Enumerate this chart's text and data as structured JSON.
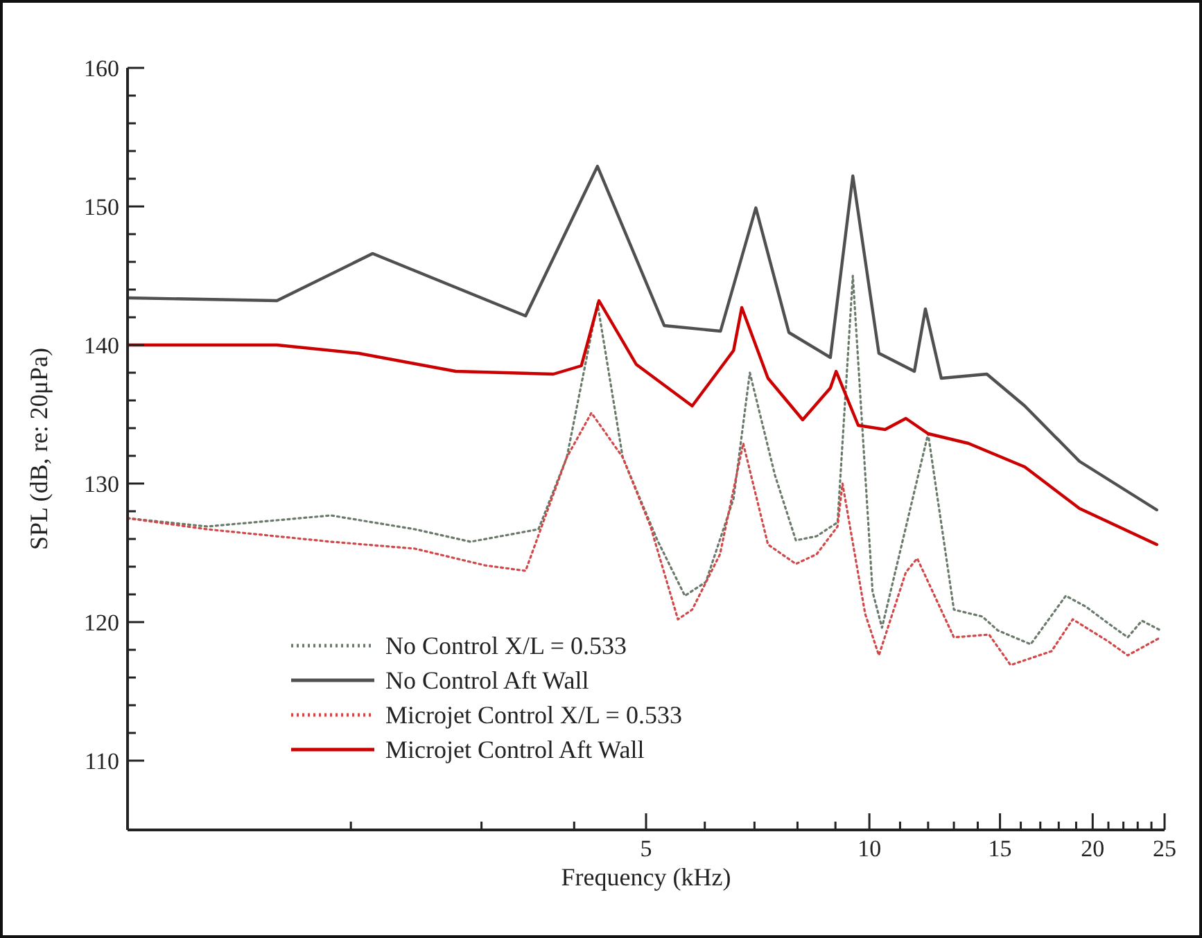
{
  "chart_data": {
    "type": "line",
    "xlabel": "Frequency (kHz)",
    "ylabel": "SPL (dB, re: 20μPa)",
    "log": "x",
    "xlim": [
      1,
      25
    ],
    "ylim": [
      105,
      160
    ],
    "xticks": [
      {
        "value": 2,
        "label": null
      },
      {
        "value": 3,
        "label": null
      },
      {
        "value": 4,
        "label": null
      },
      5,
      {
        "value": 6,
        "label": null
      },
      {
        "value": 7,
        "label": null
      },
      {
        "value": 8,
        "label": null
      },
      {
        "value": 9,
        "label": null
      },
      10,
      {
        "value": 11,
        "label": null
      },
      {
        "value": 12,
        "label": null
      },
      {
        "value": 13,
        "label": null
      },
      {
        "value": 14,
        "label": null
      },
      15,
      {
        "value": 16,
        "label": null
      },
      {
        "value": 17,
        "label": null
      },
      {
        "value": 18,
        "label": null
      },
      {
        "value": 19,
        "label": null
      },
      20,
      {
        "value": 21,
        "label": null
      },
      {
        "value": 22,
        "label": null
      },
      {
        "value": 23,
        "label": null
      },
      {
        "value": 24,
        "label": null
      },
      25
    ],
    "yticks": [
      110,
      {
        "value": 112,
        "label": null
      },
      {
        "value": 114,
        "label": null
      },
      {
        "value": 116,
        "label": null
      },
      {
        "value": 118,
        "label": null
      },
      120,
      {
        "value": 122,
        "label": null
      },
      {
        "value": 124,
        "label": null
      },
      {
        "value": 126,
        "label": null
      },
      {
        "value": 128,
        "label": null
      },
      130,
      {
        "value": 132,
        "label": null
      },
      {
        "value": 134,
        "label": null
      },
      {
        "value": 136,
        "label": null
      },
      {
        "value": 138,
        "label": null
      },
      140,
      {
        "value": 142,
        "label": null
      },
      {
        "value": 144,
        "label": null
      },
      {
        "value": 146,
        "label": null
      },
      {
        "value": 148,
        "label": null
      },
      150,
      {
        "value": 152,
        "label": null
      },
      {
        "value": 154,
        "label": null
      },
      {
        "value": 156,
        "label": null
      },
      {
        "value": 158,
        "label": null
      },
      160
    ],
    "grid": false,
    "legend": "bottom left",
    "series": [
      {
        "name": "No Control X/L = 0.533",
        "color": "#6a7a6a",
        "line_style": "dotted",
        "x": [
          1,
          1.28,
          1.88,
          2.44,
          2.9,
          3.58,
          3.91,
          4.3,
          4.65,
          5.18,
          5.64,
          6.02,
          6.56,
          6.9,
          7.46,
          7.96,
          8.49,
          9.06,
          9.5,
          10.1,
          10.4,
          12,
          13,
          14.2,
          14.9,
          16.5,
          18.4,
          19.6,
          21,
          22.3,
          23.3,
          24.7
        ],
        "values": [
          127.5,
          126.9,
          127.7,
          126.7,
          125.8,
          126.7,
          131.9,
          143,
          131.9,
          125.9,
          121.9,
          122.9,
          128.9,
          138,
          130.6,
          125.9,
          126.2,
          127.2,
          145,
          122.2,
          119.6,
          133.6,
          120.9,
          120.4,
          119.4,
          118.4,
          121.9,
          121.1,
          119.9,
          118.9,
          120.1,
          119.4
        ]
      },
      {
        "name": "No Control Aft Wall",
        "color": "#505050",
        "line_style": "solid",
        "x": [
          1,
          1.59,
          2.14,
          3.44,
          4.3,
          5.29,
          6.3,
          7.03,
          7.79,
          8.86,
          9.5,
          10.3,
          11.5,
          11.9,
          12.5,
          14.4,
          16.2,
          19.2,
          24.4
        ],
        "values": [
          143.4,
          143.2,
          146.6,
          142.1,
          152.9,
          141.4,
          141,
          149.9,
          140.9,
          139.1,
          152.2,
          139.4,
          138.1,
          142.6,
          137.6,
          137.9,
          135.6,
          131.6,
          128.1
        ]
      },
      {
        "name": "Microjet Control X/L = 0.533",
        "color": "#d04848",
        "line_style": "dotted",
        "x": [
          1,
          1.28,
          1.88,
          2.44,
          3.03,
          3.44,
          3.91,
          4.22,
          4.65,
          5.07,
          5.52,
          5.77,
          6.29,
          6.76,
          7.3,
          7.96,
          8.49,
          9.06,
          9.2,
          9.87,
          10.3,
          11.2,
          11.6,
          13,
          14.5,
          15.5,
          17.6,
          18.8,
          21,
          22.3,
          24.7
        ],
        "values": [
          127.5,
          126.7,
          125.8,
          125.3,
          124.1,
          123.7,
          131.9,
          135.1,
          131.9,
          126.9,
          120.2,
          120.9,
          124.9,
          132.9,
          125.6,
          124.2,
          124.9,
          126.9,
          130,
          120.6,
          117.6,
          123.6,
          124.6,
          118.9,
          119.1,
          116.9,
          117.9,
          120.2,
          118.6,
          117.6,
          118.9
        ]
      },
      {
        "name": "Microjet Control Aft Wall",
        "color": "#cc0000",
        "line_style": "solid",
        "x": [
          1,
          1.59,
          2.05,
          2.77,
          3.75,
          4.09,
          4.32,
          4.85,
          5.77,
          6.56,
          6.73,
          7.3,
          8.13,
          8.86,
          9.02,
          9.66,
          10.5,
          11.2,
          12,
          13.6,
          16.2,
          19.2,
          24.4
        ],
        "values": [
          140,
          140,
          139.4,
          138.1,
          137.9,
          138.5,
          143.2,
          138.6,
          135.6,
          139.6,
          142.7,
          137.6,
          134.6,
          136.9,
          138.1,
          134.2,
          133.9,
          134.7,
          133.6,
          132.9,
          131.2,
          128.2,
          125.6
        ]
      }
    ]
  }
}
